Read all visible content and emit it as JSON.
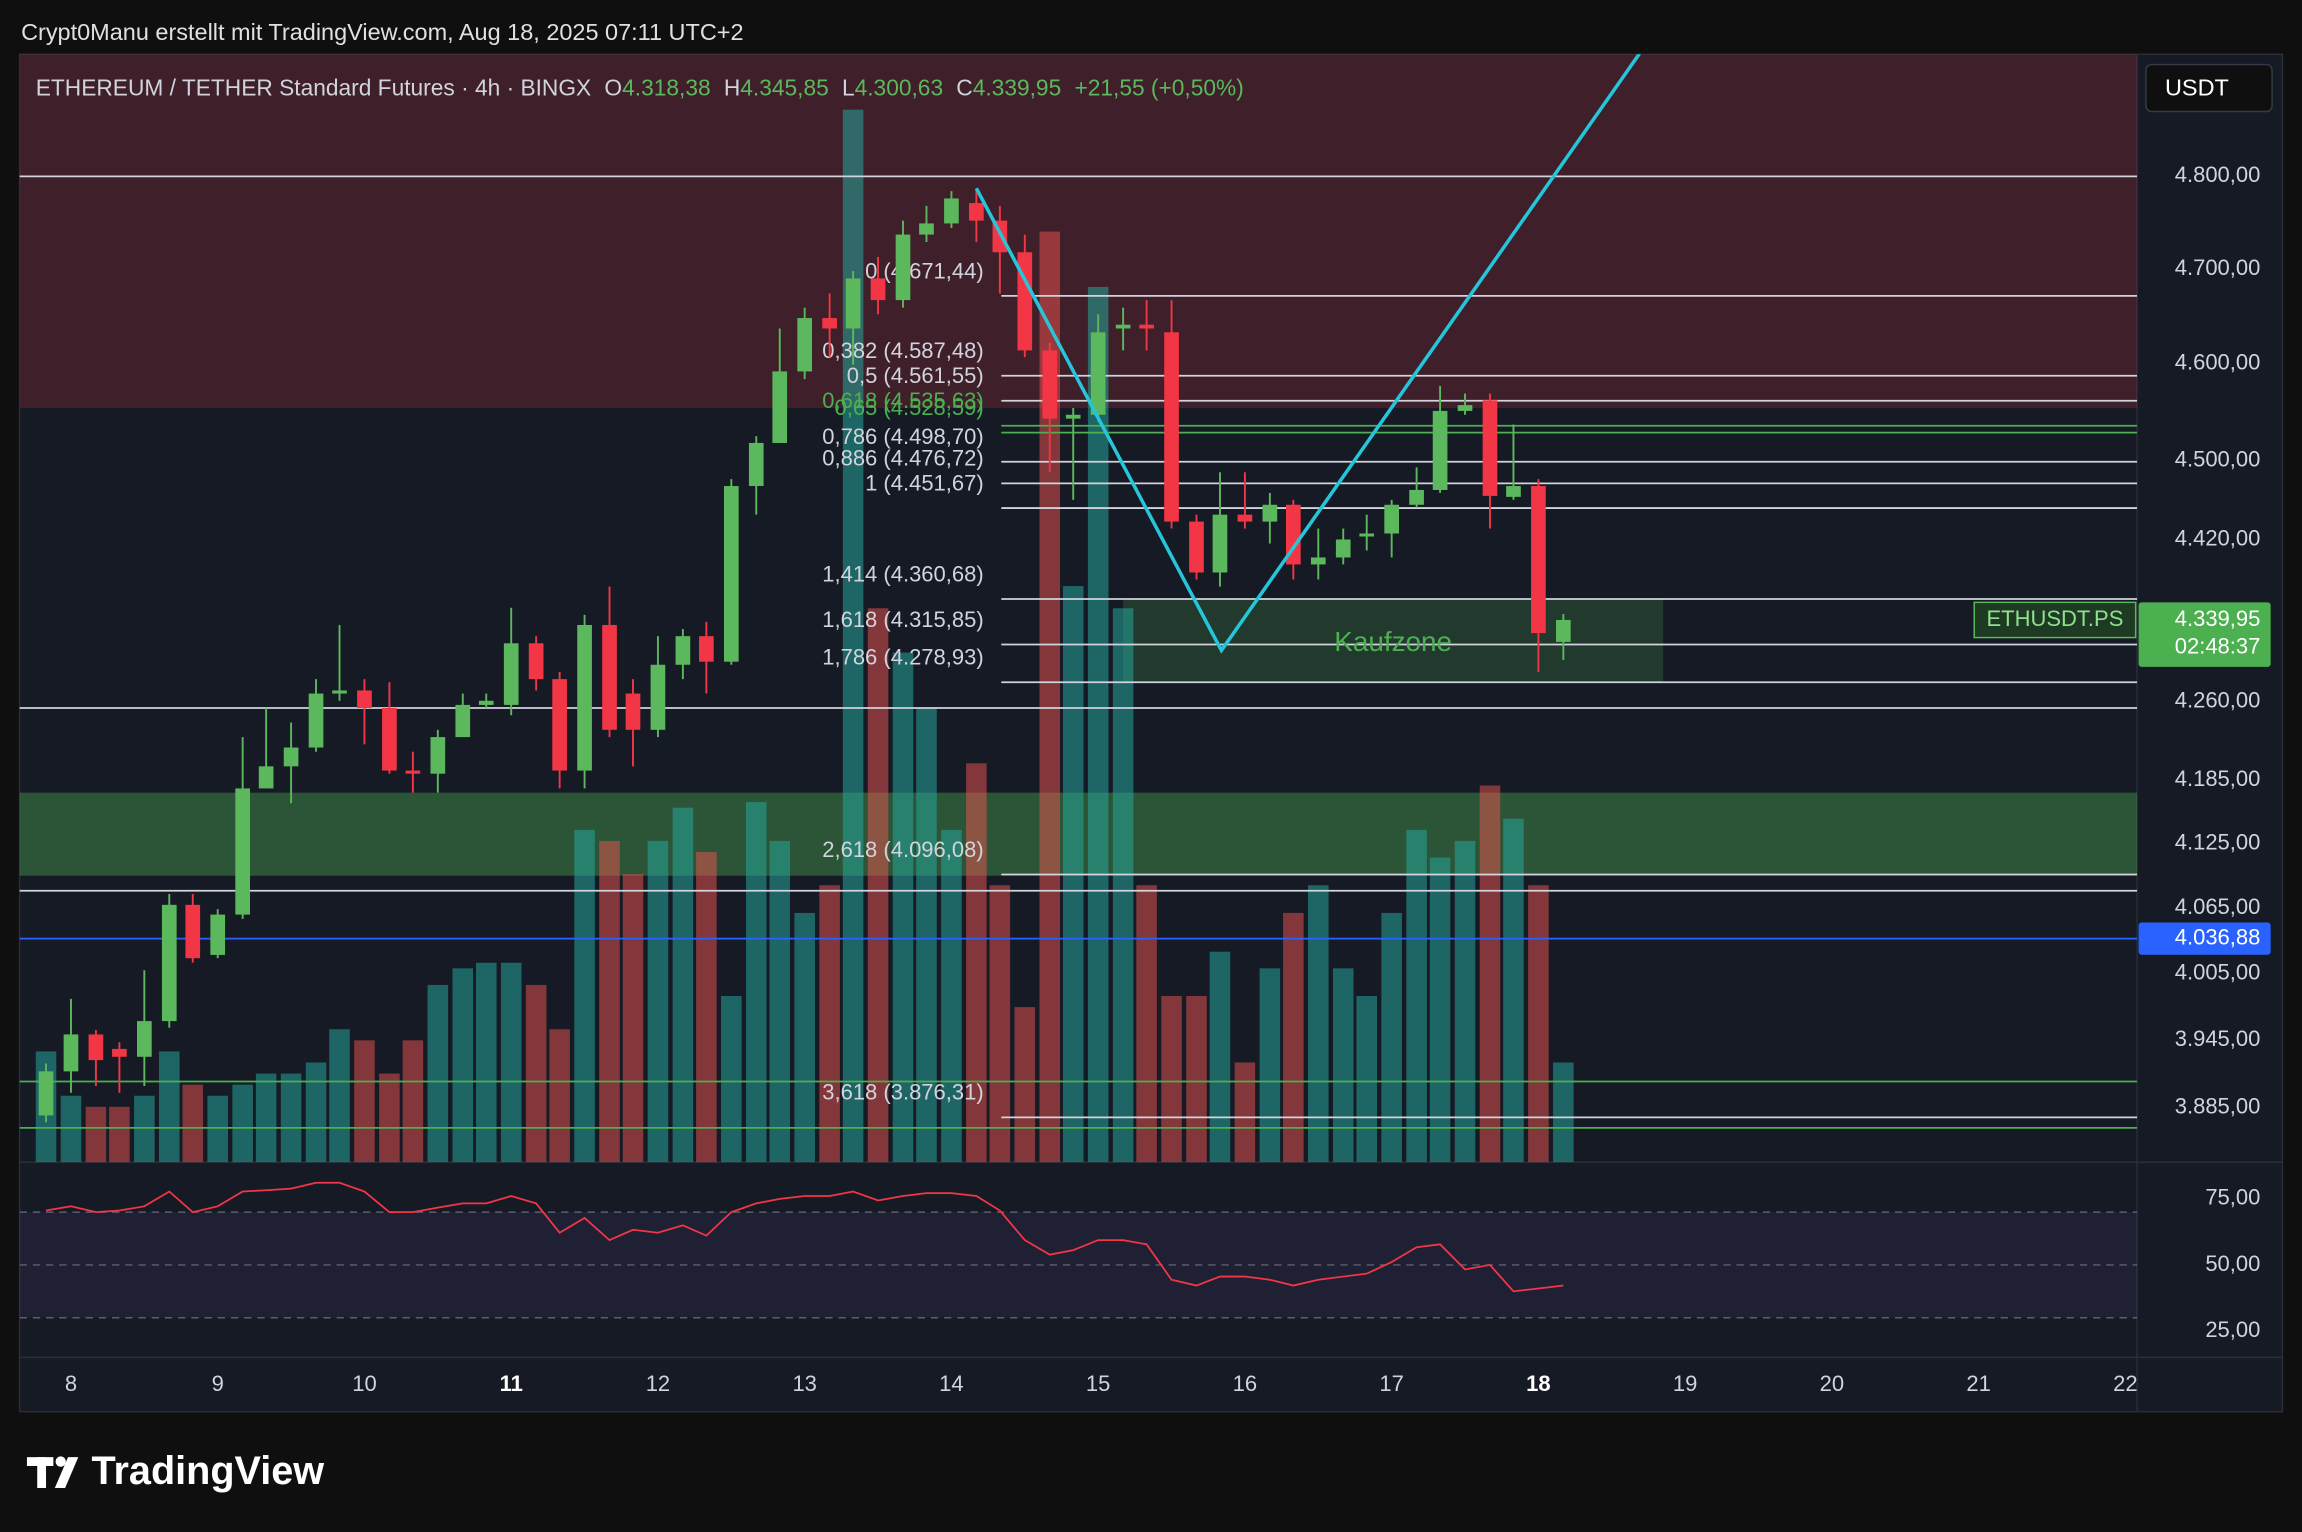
{
  "credit": "Crypt0Manu erstellt mit TradingView.com, Aug 18, 2025 07:11 UTC+2",
  "logo": "TradingView",
  "chart_data": {
    "type": "candlestick",
    "header": [
      "ETHEREUM / TETHER Standard Futures · 4h · BINGX",
      "O",
      "4.318,38",
      "H",
      "4.345,85",
      "L",
      "4.300,63",
      "C",
      "4.339,95",
      "+21,55 (+0,50%)"
    ],
    "currency": "USDT",
    "symbol_tag": "ETHUSDT.PS",
    "last_price_label": "4.339,95",
    "countdown": "02:48:37",
    "x": [
      7.83,
      8,
      8.17,
      8.33,
      8.5,
      8.67,
      8.83,
      9,
      9.17,
      9.33,
      9.5,
      9.67,
      9.83,
      10,
      10.17,
      10.33,
      10.5,
      10.67,
      10.83,
      11,
      11.17,
      11.33,
      11.5,
      11.67,
      11.83,
      12,
      12.17,
      12.33,
      12.5,
      12.67,
      12.83,
      13,
      13.17,
      13.33,
      13.5,
      13.67,
      13.83,
      14,
      14.17,
      14.33,
      14.5,
      14.67,
      14.83,
      15,
      15.17,
      15.33,
      15.5,
      15.67,
      15.83,
      16,
      16.17,
      16.33,
      16.5,
      16.67,
      16.83,
      17,
      17.17,
      17.33,
      17.5,
      17.67,
      17.83,
      18,
      18.17
    ],
    "open": [
      3878,
      3917,
      3950,
      3937,
      3930,
      3962,
      4068,
      4022,
      4059,
      4177,
      4198,
      4216,
      4268,
      4271,
      4254,
      4194,
      4191,
      4226,
      4257,
      4257,
      4317,
      4282,
      4194,
      4335,
      4268,
      4233,
      4296,
      4324,
      4299,
      4474,
      4518,
      4592,
      4648,
      4637,
      4690,
      4667,
      4737,
      4749,
      4771,
      4752,
      4718,
      4614,
      4543,
      4547,
      4637,
      4641,
      4633,
      4438,
      4387,
      4445,
      4438,
      4455,
      4395,
      4402,
      4423,
      4426,
      4455,
      4470,
      4551,
      4562,
      4463,
      4474,
      4318.38
    ],
    "high": [
      3924,
      3982,
      3954,
      3943,
      4008,
      4078,
      4078,
      4064,
      4226,
      4254,
      4240,
      4282,
      4335,
      4282,
      4279,
      4212,
      4233,
      4268,
      4268,
      4352,
      4324,
      4289,
      4345,
      4373,
      4282,
      4324,
      4331,
      4338,
      4481,
      4525,
      4637,
      4659,
      4674,
      4698,
      4713,
      4752,
      4768,
      4784,
      4787,
      4768,
      4737,
      4622,
      4554,
      4652,
      4659,
      4667,
      4667,
      4445,
      4488,
      4488,
      4467,
      4460,
      4431,
      4431,
      4445,
      4460,
      4493,
      4577,
      4569,
      4569,
      4537,
      4481,
      4345.85
    ],
    "low": [
      3872,
      3898,
      3904,
      3898,
      3904,
      3956,
      4015,
      4019,
      4055,
      4177,
      4163,
      4212,
      4261,
      4219,
      4191,
      4173,
      4173,
      4226,
      4254,
      4247,
      4271,
      4177,
      4177,
      4226,
      4198,
      4226,
      4282,
      4268,
      4296,
      4445,
      4518,
      4584,
      4607,
      4599,
      4652,
      4659,
      4729,
      4744,
      4729,
      4674,
      4607,
      4488,
      4460,
      4540,
      4614,
      4614,
      4431,
      4380,
      4373,
      4431,
      4416,
      4380,
      4380,
      4395,
      4409,
      4402,
      4452,
      4467,
      4547,
      4431,
      4460,
      4289,
      4300.63
    ],
    "close": [
      3917,
      3950,
      3927,
      3930,
      3962,
      4068,
      4019,
      4059,
      4177,
      4198,
      4216,
      4268,
      4271,
      4254,
      4194,
      4191,
      4226,
      4257,
      4261,
      4317,
      4282,
      4194,
      4335,
      4233,
      4233,
      4296,
      4324,
      4299,
      4474,
      4518,
      4592,
      4648,
      4637,
      4690,
      4667,
      4737,
      4749,
      4776,
      4752,
      4718,
      4614,
      4543,
      4547,
      4633,
      4641,
      4637,
      4438,
      4387,
      4445,
      4438,
      4455,
      4395,
      4402,
      4420,
      4426,
      4455,
      4470,
      4551,
      4557,
      4464,
      4474,
      4327,
      4339.95
    ],
    "volume": [
      20,
      12,
      10,
      10,
      12,
      20,
      14,
      12,
      14,
      16,
      16,
      18,
      24,
      22,
      16,
      22,
      32,
      35,
      36,
      36,
      32,
      24,
      60,
      58,
      52,
      58,
      64,
      56,
      30,
      65,
      58,
      45,
      50,
      190,
      100,
      92,
      82,
      60,
      72,
      50,
      28,
      168,
      104,
      158,
      100,
      50,
      30,
      30,
      38,
      18,
      35,
      45,
      50,
      35,
      30,
      45,
      60,
      55,
      58,
      68,
      62,
      50,
      18
    ],
    "volume_ylim": [
      0,
      200
    ],
    "log_scale": true,
    "ylim": [
      3837,
      4935
    ],
    "yticks": [
      {
        "value": 4800,
        "label": "4.800,00"
      },
      {
        "value": 4700,
        "label": "4.700,00"
      },
      {
        "value": 4600,
        "label": "4.600,00"
      },
      {
        "value": 4500,
        "label": "4.500,00"
      },
      {
        "value": 4420,
        "label": "4.420,00"
      },
      {
        "value": 4260,
        "label": "4.260,00"
      },
      {
        "value": 4185,
        "label": "4.185,00"
      },
      {
        "value": 4125,
        "label": "4.125,00"
      },
      {
        "value": 4065,
        "label": "4.065,00"
      },
      {
        "value": 4005,
        "label": "4.005,00"
      },
      {
        "value": 3945,
        "label": "3.945,00"
      },
      {
        "value": 3885,
        "label": "3.885,00"
      }
    ],
    "xlim": [
      7.65,
      22.08
    ],
    "xticks": [
      8,
      9,
      10,
      11,
      12,
      13,
      14,
      15,
      16,
      17,
      18,
      19,
      20,
      21,
      22
    ],
    "xticks_bold": [
      11,
      18
    ],
    "colors": {
      "up": "#5cb85c",
      "down": "#f23645",
      "volume_up": "rgba(38,166,154,0.55)",
      "volume_down": "rgba(239,83,80,0.5)"
    },
    "fib_start": 14.34,
    "fib_levels": [
      {
        "value": 4671.44,
        "label": "0 (4.671,44)",
        "color": "#d1d4dc"
      },
      {
        "value": 4587.48,
        "label": "0,382 (4.587,48)",
        "color": "#d1d4dc"
      },
      {
        "value": 4561.55,
        "label": "0,5 (4.561,55)",
        "color": "#d1d4dc"
      },
      {
        "value": 4535.63,
        "label": "0,618 (4.535,63)",
        "color": "#4caf50"
      },
      {
        "value": 4528.59,
        "label": "0,65 (4.528,59)",
        "color": "#4caf50"
      },
      {
        "value": 4498.7,
        "label": "0,786 (4.498,70)",
        "color": "#d1d4dc"
      },
      {
        "value": 4476.72,
        "label": "0,886 (4.476,72)",
        "color": "#d1d4dc"
      },
      {
        "value": 4451.67,
        "label": "1 (4.451,67)",
        "color": "#d1d4dc"
      },
      {
        "value": 4360.68,
        "label": "1,414 (4.360,68)",
        "color": "#d1d4dc"
      },
      {
        "value": 4315.85,
        "label": "1,618 (4.315,85)",
        "color": "#d1d4dc"
      },
      {
        "value": 4278.93,
        "label": "1,786 (4.278,93)",
        "color": "#d1d4dc"
      },
      {
        "value": 4096.08,
        "label": "2,618 (4.096,08)",
        "color": "#d1d4dc"
      },
      {
        "value": 3876.31,
        "label": "3,618 (3.876,31)",
        "color": "#d1d4dc"
      }
    ],
    "zones": [
      {
        "from": 4554,
        "to": 4935,
        "color": "rgba(242,54,69,0.18)"
      },
      {
        "from": 4095,
        "to": 4173,
        "color": "rgba(76,175,80,0.4)"
      },
      {
        "from": 4278.93,
        "to": 4360.68,
        "x": [
          15.17,
          18.85
        ],
        "color": "rgba(76,175,80,0.22)",
        "label": "Kaufzone"
      }
    ],
    "hlines": [
      {
        "value": 4800,
        "color": "#d1d4dc"
      },
      {
        "value": 4254,
        "color": "#d1d4dc"
      },
      {
        "value": 4081,
        "color": "#d1d4dc"
      },
      {
        "value": 3908,
        "color": "#4caf50"
      },
      {
        "value": 3867,
        "color": "#4caf50"
      },
      {
        "value": 4036.88,
        "color": "#2962ff",
        "label": "4.036,88"
      }
    ],
    "pattern": {
      "x": [
        14.17,
        15.84,
        18.69
      ],
      "values": [
        4787,
        4310,
        4936
      ],
      "color": "#26c6da"
    },
    "rsi": {
      "values": [
        70.6,
        72.2,
        70,
        70.6,
        72.2,
        77.8,
        70,
        72.2,
        77.8,
        78.3,
        78.9,
        81.1,
        81.1,
        77.8,
        70,
        70,
        71.7,
        73.3,
        73.3,
        76.1,
        73.3,
        62.2,
        67.8,
        59.4,
        63.3,
        62.2,
        65,
        61.1,
        70,
        73.3,
        75,
        76.1,
        76.1,
        77.8,
        74.4,
        76.1,
        77.2,
        77.2,
        76.1,
        70.6,
        59.4,
        53.9,
        55.6,
        59.4,
        59.4,
        57.8,
        44.4,
        42.2,
        45.6,
        45.6,
        44.4,
        42.2,
        44.4,
        45.6,
        46.7,
        51.1,
        56.7,
        57.8,
        48.3,
        50,
        40,
        41.1,
        42.2
      ],
      "ylim": [
        15,
        88.9
      ],
      "yticks": [
        {
          "value": 75,
          "label": "75,00"
        },
        {
          "value": 50,
          "label": "50,00"
        },
        {
          "value": 25,
          "label": "25,00"
        }
      ],
      "bands": [
        70,
        50,
        30
      ],
      "color": "#f23645"
    }
  }
}
